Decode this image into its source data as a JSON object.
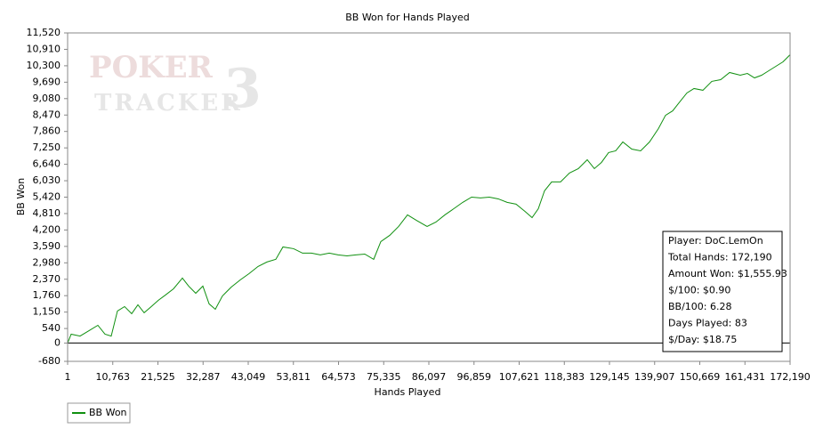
{
  "chart_data": {
    "type": "line",
    "title": "BB Won for Hands Played",
    "x_label": "Hands Played",
    "y_label": "BB Won",
    "watermark": [
      "POKER",
      "TRACKER",
      "3"
    ],
    "xlim": [
      1,
      172190
    ],
    "ylim": [
      -680,
      11520
    ],
    "xticks": [
      1,
      {
        "value": 10763,
        "label": "10,763"
      },
      {
        "value": 21525,
        "label": "21,525"
      },
      {
        "value": 32287,
        "label": "32,287"
      },
      {
        "value": 43049,
        "label": "43,049"
      },
      {
        "value": 53811,
        "label": "53,811"
      },
      {
        "value": 64573,
        "label": "64,573"
      },
      {
        "value": 75335,
        "label": "75,335"
      },
      {
        "value": 86097,
        "label": "86,097"
      },
      {
        "value": 96859,
        "label": "96,859"
      },
      {
        "value": 107621,
        "label": "107,621"
      },
      {
        "value": 118383,
        "label": "118,383"
      },
      {
        "value": 129145,
        "label": "129,145"
      },
      {
        "value": 139907,
        "label": "139,907"
      },
      {
        "value": 150669,
        "label": "150,669"
      },
      {
        "value": 161431,
        "label": "161,431"
      },
      {
        "value": 172190,
        "label": "172,190"
      }
    ],
    "yticks": [
      -680,
      0,
      540,
      {
        "value": 1150,
        "label": "1,150"
      },
      {
        "value": 1760,
        "label": "1,760"
      },
      {
        "value": 2370,
        "label": "2,370"
      },
      {
        "value": 2980,
        "label": "2,980"
      },
      {
        "value": 3590,
        "label": "3,590"
      },
      {
        "value": 4200,
        "label": "4,200"
      },
      {
        "value": 4810,
        "label": "4,810"
      },
      {
        "value": 5420,
        "label": "5,420"
      },
      {
        "value": 6030,
        "label": "6,030"
      },
      {
        "value": 6640,
        "label": "6,640"
      },
      {
        "value": 7250,
        "label": "7,250"
      },
      {
        "value": 7860,
        "label": "7,860"
      },
      {
        "value": 8470,
        "label": "8,470"
      },
      {
        "value": 9080,
        "label": "9,080"
      },
      {
        "value": 9690,
        "label": "9,690"
      },
      {
        "value": 10300,
        "label": "10,300"
      },
      {
        "value": 10910,
        "label": "10,910"
      },
      {
        "value": 11520,
        "label": "11,520"
      }
    ],
    "zero_line": true,
    "x": [
      1,
      849,
      2970,
      5090,
      7211,
      8907,
      10392,
      11876,
      13573,
      15269,
      16754,
      18238,
      19934,
      21631,
      23328,
      25236,
      27357,
      28841,
      30538,
      32234,
      33719,
      35203,
      36899,
      39020,
      41141,
      43261,
      45382,
      47502,
      49623,
      51320,
      53864,
      55985,
      58105,
      60226,
      62347,
      64467,
      66588,
      68708,
      70829,
      72949,
      74646,
      76767,
      78887,
      81008,
      83128,
      85673,
      87794,
      89914,
      92035,
      94155,
      96276,
      98397,
      100517,
      102638,
      104758,
      106879,
      108999,
      110696,
      112180,
      113665,
      115361,
      117482,
      119602,
      121723,
      123843,
      125540,
      127236,
      128933,
      130629,
      132326,
      134446,
      136567,
      138688,
      140808,
      142505,
      144201,
      145898,
      147594,
      149290,
      151411,
      153532,
      155652,
      157773,
      160317,
      162014,
      163710,
      165407,
      167103,
      168800,
      170496,
      172190
    ],
    "series": [
      {
        "name": "BB Won",
        "color": "#109010",
        "values": [
          0,
          330,
          260,
          460,
          660,
          330,
          260,
          1190,
          1355,
          1090,
          1420,
          1125,
          1355,
          1590,
          1785,
          2015,
          2415,
          2115,
          1850,
          2115,
          1455,
          1255,
          1750,
          2080,
          2345,
          2580,
          2845,
          3010,
          3110,
          3570,
          3505,
          3340,
          3340,
          3275,
          3340,
          3275,
          3240,
          3275,
          3305,
          3110,
          3770,
          4000,
          4330,
          4760,
          4560,
          4330,
          4495,
          4760,
          4990,
          5225,
          5420,
          5390,
          5420,
          5355,
          5225,
          5160,
          4890,
          4660,
          4990,
          5655,
          5985,
          5985,
          6315,
          6480,
          6810,
          6480,
          6710,
          7075,
          7140,
          7470,
          7205,
          7140,
          7470,
          7965,
          8460,
          8625,
          8960,
          9290,
          9455,
          9390,
          9720,
          9785,
          10050,
          9950,
          10015,
          9850,
          9950,
          10115,
          10280,
          10445,
          10710
        ]
      }
    ],
    "info_box": [
      "Player: DoC.LemOn",
      "Total Hands: 172,190",
      "Amount Won: $1,555.93",
      "$/100: $0.90",
      "BB/100: 6.28",
      "Days Played: 83",
      "$/Day: $18.75"
    ]
  }
}
